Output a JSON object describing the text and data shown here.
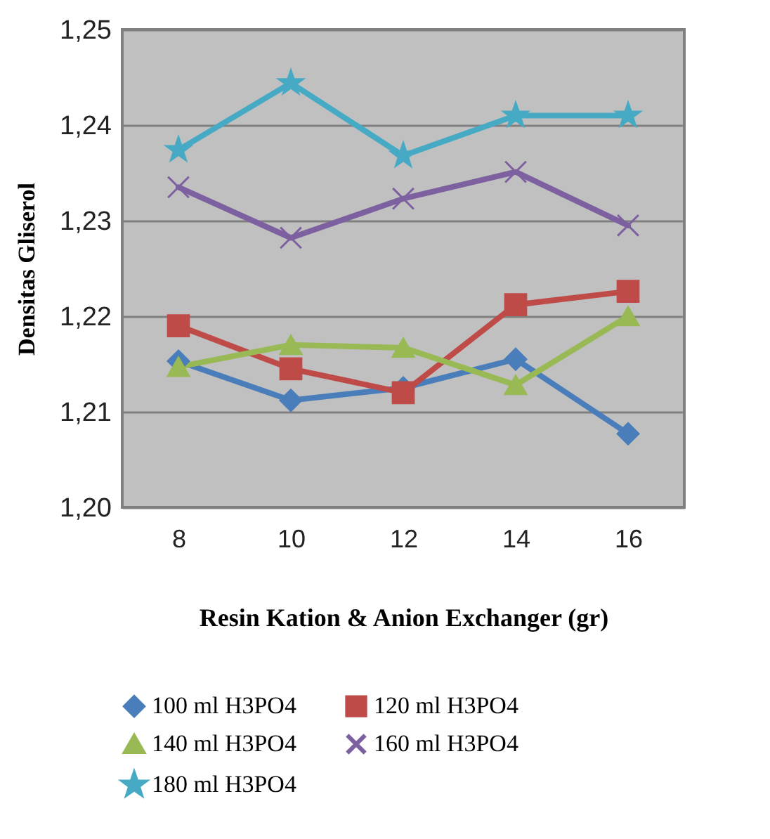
{
  "chart_data": {
    "type": "line",
    "xlabel": "Resin Kation & Anion Exchanger (gr)",
    "ylabel": "Densitas Gliserol",
    "categories": [
      "8",
      "10",
      "12",
      "14",
      "16"
    ],
    "ylim": [
      1.2,
      1.25
    ],
    "yticks": [
      {
        "value": 1.2,
        "label": "1,20"
      },
      {
        "value": 1.21,
        "label": "1,21"
      },
      {
        "value": 1.22,
        "label": "1,22"
      },
      {
        "value": 1.23,
        "label": "1,23"
      },
      {
        "value": 1.24,
        "label": "1,24"
      },
      {
        "value": 1.25,
        "label": "1,25"
      }
    ],
    "grid": "y",
    "legend": "bottom",
    "series": [
      {
        "name": "100 ml H3PO4",
        "color": "#4a7ebb",
        "marker": "diamond",
        "values": [
          1.2153,
          1.2112,
          1.2125,
          1.2155,
          1.2077
        ]
      },
      {
        "name": "120 ml H3PO4",
        "color": "#be4b48",
        "marker": "square",
        "values": [
          1.219,
          1.2145,
          1.212,
          1.2212,
          1.2226
        ]
      },
      {
        "name": "140 ml H3PO4",
        "color": "#98b954",
        "marker": "triangle",
        "values": [
          1.2147,
          1.217,
          1.2167,
          1.2128,
          1.22
        ]
      },
      {
        "name": "160 ml H3PO4",
        "color": "#7d60a0",
        "marker": "cross",
        "values": [
          1.2335,
          1.2282,
          1.2323,
          1.2351,
          1.2295
        ]
      },
      {
        "name": "180 ml H3PO4",
        "color": "#46aac5",
        "marker": "star",
        "values": [
          1.2374,
          1.2444,
          1.2368,
          1.241,
          1.241
        ]
      }
    ]
  }
}
